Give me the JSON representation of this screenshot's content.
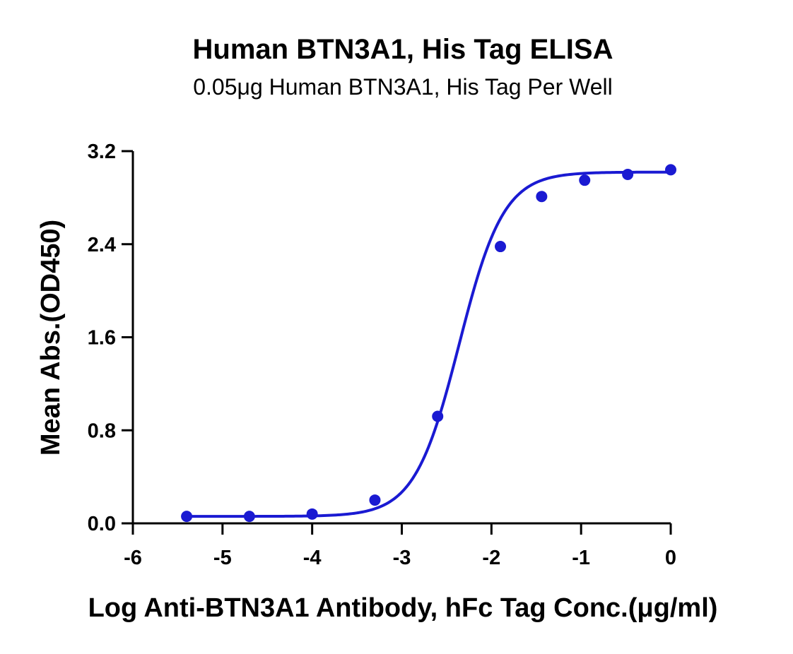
{
  "chart_data": {
    "type": "scatter",
    "title": "Human BTN3A1, His Tag ELISA",
    "subtitle": "0.05μg Human BTN3A1, His Tag Per Well",
    "xlabel": "Log Anti-BTN3A1 Antibody, hFc Tag Conc.(μg/ml)",
    "ylabel": "Mean Abs.(OD450)",
    "xlim": [
      -6,
      0
    ],
    "ylim": [
      0,
      3.2
    ],
    "x_ticks": [
      "-6",
      "-5",
      "-4",
      "-3",
      "-2",
      "-1",
      "0"
    ],
    "y_ticks": [
      "0.0",
      "0.8",
      "1.6",
      "2.4",
      "3.2"
    ],
    "x_tick_values": [
      -6,
      -5,
      -4,
      -3,
      -2,
      -1,
      0
    ],
    "y_tick_values": [
      0,
      0.8,
      1.6,
      2.4,
      3.2
    ],
    "grid": false,
    "series": [
      {
        "points": [
          {
            "x": -5.4,
            "y": 0.06
          },
          {
            "x": -4.7,
            "y": 0.06
          },
          {
            "x": -4.0,
            "y": 0.08
          },
          {
            "x": -3.3,
            "y": 0.2
          },
          {
            "x": -2.6,
            "y": 0.92
          },
          {
            "x": -1.9,
            "y": 2.38
          },
          {
            "x": -1.44,
            "y": 2.81
          },
          {
            "x": -0.96,
            "y": 2.95
          },
          {
            "x": -0.48,
            "y": 3.0
          },
          {
            "x": 0.0,
            "y": 3.04
          }
        ],
        "fit": {
          "model": "4PL",
          "bottom": 0.06,
          "top": 3.02,
          "logEC50": -2.36,
          "hill": 1.75
        }
      }
    ],
    "colors": {
      "series": "#1a1ad2",
      "axis": "#000000"
    }
  }
}
